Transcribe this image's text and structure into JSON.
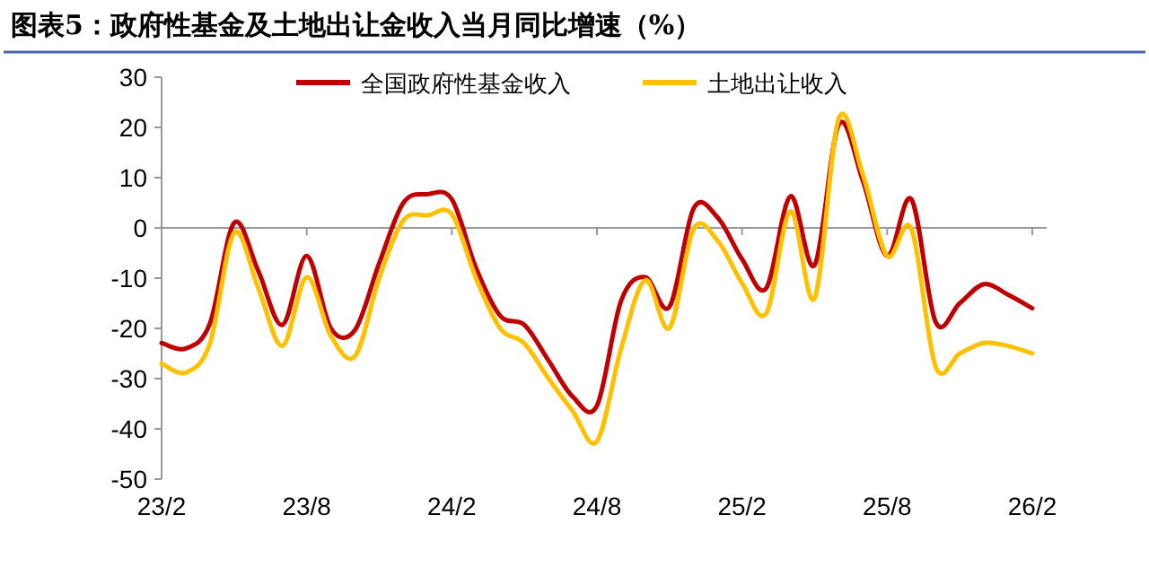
{
  "chart_data": {
    "type": "line",
    "title": "图表5：政府性基金及土地出让金收入当月同比增速（%）",
    "categories": [
      "23/2",
      null,
      null,
      null,
      null,
      null,
      "23/8",
      null,
      null,
      null,
      null,
      null,
      "24/2",
      null,
      null,
      null,
      null,
      null,
      "24/8",
      null,
      null,
      null,
      null,
      null,
      "25/2",
      null,
      null,
      null,
      null,
      null,
      "25/8",
      null,
      null,
      null,
      null,
      null,
      "26/2"
    ],
    "series": [
      {
        "name": "全国政府性基金收入",
        "color": "#c00000",
        "values": [
          -22.9,
          -24,
          -19,
          1,
          -8.6,
          -19.3,
          -5.6,
          -20,
          -20.3,
          -7,
          5,
          6.7,
          5.7,
          -8,
          -17.5,
          -19.3,
          -26.4,
          -33.6,
          -35.4,
          -14.5,
          -9.8,
          -15.7,
          3.9,
          2,
          -6.2,
          -12,
          6.3,
          -7.4,
          20.6,
          9.3,
          -5.6,
          5.7,
          -18.7,
          -15,
          -11.2,
          -13.3,
          -16
        ]
      },
      {
        "name": "土地出让收入",
        "color": "#ffc000",
        "values": [
          -27,
          -28.8,
          -23,
          -1,
          -12,
          -23.5,
          -9.8,
          -21.5,
          -25.5,
          -10,
          1.5,
          2.5,
          2.7,
          -10,
          -20,
          -23,
          -30,
          -36.5,
          -42.5,
          -24,
          -10.4,
          -19.9,
          -0.2,
          -2.6,
          -11,
          -17,
          3.3,
          -14,
          21.8,
          10.5,
          -5.6,
          -0.2,
          -27.6,
          -25,
          -22.9,
          -23.5,
          -25
        ]
      }
    ],
    "ylim": [
      -50,
      30
    ],
    "yticks": [
      -50,
      -40,
      -30,
      -20,
      -10,
      0,
      10,
      20,
      30
    ],
    "legend": "top"
  }
}
